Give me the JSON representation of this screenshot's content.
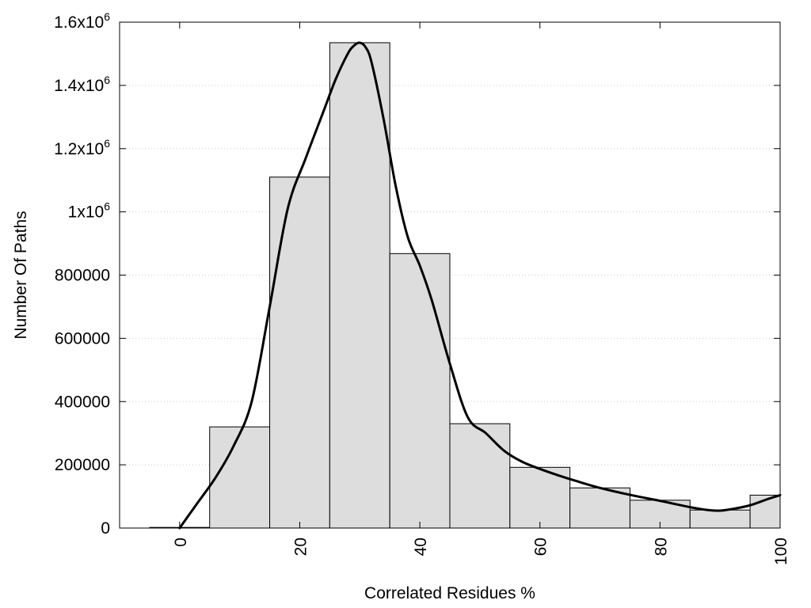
{
  "chart_data": {
    "type": "bar",
    "title": "",
    "xlabel": "Correlated Residues %",
    "ylabel": "Number Of Paths",
    "xlim": [
      -10,
      100
    ],
    "ylim": [
      0,
      1600000
    ],
    "grid": true,
    "bin_width": 10,
    "bins": [
      {
        "center": 0,
        "value": 2000
      },
      {
        "center": 10,
        "value": 320000
      },
      {
        "center": 20,
        "value": 1110000
      },
      {
        "center": 30,
        "value": 1535000
      },
      {
        "center": 40,
        "value": 868000
      },
      {
        "center": 50,
        "value": 330000
      },
      {
        "center": 60,
        "value": 192000
      },
      {
        "center": 70,
        "value": 127000
      },
      {
        "center": 80,
        "value": 88000
      },
      {
        "center": 90,
        "value": 57000
      },
      {
        "center": 100,
        "value": 104000
      }
    ],
    "curve": {
      "x": [
        0,
        3,
        6,
        9,
        12,
        15,
        18,
        21,
        24,
        26,
        28,
        29,
        30,
        31,
        32,
        34,
        36,
        38,
        40,
        42,
        45,
        48,
        51,
        54,
        57,
        60,
        63,
        66,
        70,
        75,
        80,
        85,
        88,
        90,
        92,
        95,
        98,
        100
      ],
      "y": [
        0,
        80000,
        160000,
        260000,
        400000,
        700000,
        1010000,
        1170000,
        1320000,
        1420000,
        1500000,
        1525000,
        1535000,
        1520000,
        1470000,
        1290000,
        1080000,
        920000,
        830000,
        720000,
        520000,
        350000,
        300000,
        245000,
        210000,
        187000,
        167000,
        149000,
        127000,
        105000,
        86000,
        66000,
        57000,
        55000,
        60000,
        72000,
        92000,
        104000
      ]
    },
    "x_ticks": [
      {
        "value": 0,
        "label": "0"
      },
      {
        "value": 20,
        "label": "20"
      },
      {
        "value": 40,
        "label": "40"
      },
      {
        "value": 60,
        "label": "60"
      },
      {
        "value": 80,
        "label": "80"
      },
      {
        "value": 100,
        "label": "100"
      }
    ],
    "y_ticks": [
      {
        "value": 0,
        "label": "0",
        "sup": ""
      },
      {
        "value": 200000,
        "label": "200000",
        "sup": ""
      },
      {
        "value": 400000,
        "label": "400000",
        "sup": ""
      },
      {
        "value": 600000,
        "label": "600000",
        "sup": ""
      },
      {
        "value": 800000,
        "label": "800000",
        "sup": ""
      },
      {
        "value": 1000000,
        "label": "1x10",
        "sup": "6"
      },
      {
        "value": 1200000,
        "label": "1.2x10",
        "sup": "6"
      },
      {
        "value": 1400000,
        "label": "1.4x10",
        "sup": "6"
      },
      {
        "value": 1600000,
        "label": "1.6x10",
        "sup": "6"
      }
    ],
    "colors": {
      "bar_fill": "#dddddd",
      "bar_stroke": "#000000",
      "curve": "#000000",
      "grid": "#cccccc"
    }
  }
}
